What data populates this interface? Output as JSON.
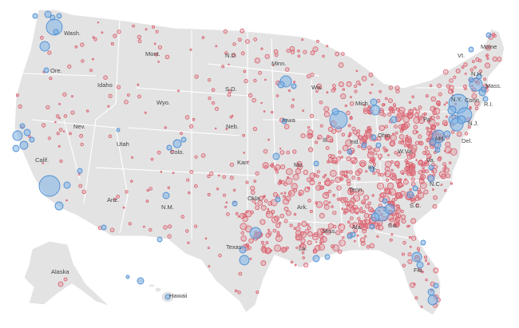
{
  "colors": {
    "land": "#e3e3e3",
    "border": "#ffffff",
    "republican_bubble": "#d9606e",
    "democratic_bubble": "#4f8fd3",
    "label": "#444444"
  },
  "labels": {
    "wash": "Wash.",
    "ore": "Ore.",
    "calif": "Calif.",
    "nev": "Nev.",
    "idaho": "Idaho",
    "mont": "Mont.",
    "wyo": "Wyo.",
    "utah": "Utah",
    "ariz": "Ariz.",
    "colo": "Colo.",
    "nm": "N.M.",
    "nd": "N.D.",
    "sd": "S.D.",
    "neb": "Neb.",
    "kan": "Kan.",
    "okla": "Okla.",
    "texas": "Texas",
    "minn": "Minn.",
    "iowa": "Iowa",
    "mo": "Mo.",
    "ark": "Ark.",
    "la": "La.",
    "wis": "Wis.",
    "ill": "Ill.",
    "mich": "Mich.",
    "ind": "Ind.",
    "ohio": "Ohio",
    "ky": "Ky.",
    "tenn": "Tenn.",
    "miss": "Miss.",
    "ala": "Ala.",
    "ga": "Ga.",
    "fla": "Fla.",
    "sc": "S.C.",
    "nc": "N.C.",
    "va": "Va.",
    "wva": "W.Va.",
    "pa": "Pa.",
    "md": "Md.",
    "del": "Del.",
    "nj": "N.J.",
    "ny": "N.Y.",
    "conn": "Conn.",
    "ri": "R.I.",
    "mass": "Mass.",
    "vt": "Vt.",
    "nh": "N.H.",
    "maine": "Maine",
    "alaska": "Alaska",
    "hawaii": "Hawaii"
  }
}
